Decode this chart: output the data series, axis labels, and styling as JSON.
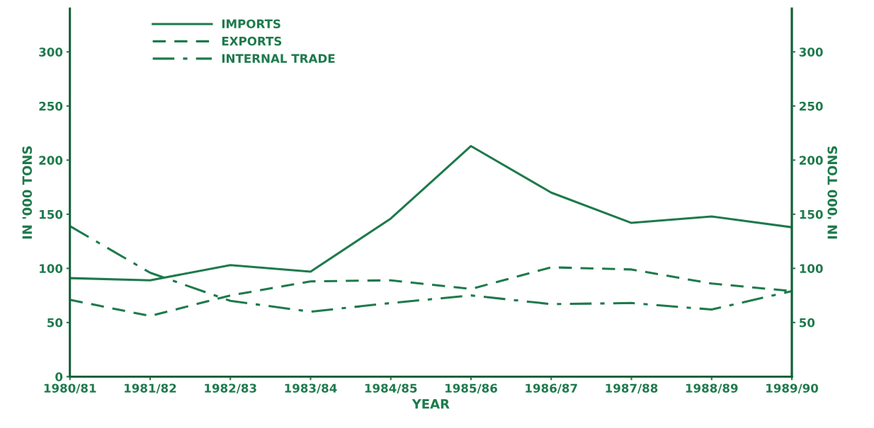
{
  "chart_data": {
    "type": "line",
    "xlabel": "YEAR",
    "ylabel": "IN '000 TONS",
    "y2label": "IN '000 TONS",
    "categories": [
      "1980/81",
      "1981/82",
      "1982/83",
      "1983/84",
      "1984/85",
      "1985/86",
      "1986/87",
      "1987/88",
      "1988/89",
      "1989/90"
    ],
    "series": [
      {
        "name": "IMPORTS",
        "color": "#1e7a4c",
        "line_style": "solid",
        "values": [
          91,
          89,
          103,
          97,
          146,
          213,
          170,
          142,
          148,
          138
        ]
      },
      {
        "name": "EXPORTS",
        "color": "#1e7a4c",
        "line_style": "dashed",
        "values": [
          71,
          56,
          75,
          88,
          89,
          81,
          101,
          99,
          86,
          79
        ]
      },
      {
        "name": "INTERNAL TRADE",
        "color": "#1e7a4c",
        "line_style": "dashdot",
        "values": [
          139,
          96,
          70,
          60,
          68,
          75,
          67,
          68,
          62,
          79
        ]
      }
    ],
    "ylim": [
      0,
      340
    ],
    "yticks": [
      0,
      50,
      100,
      150,
      200,
      250,
      300
    ],
    "y2lim": [
      0,
      340
    ],
    "y2ticks": [
      50,
      100,
      150,
      200,
      250,
      300
    ],
    "grid": false,
    "legend": "top left",
    "marker": "none"
  }
}
